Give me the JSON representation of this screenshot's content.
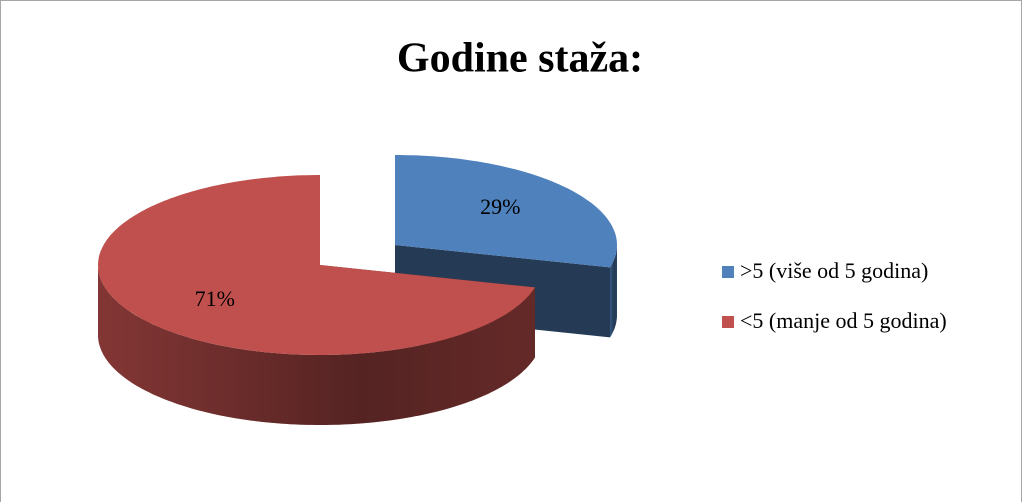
{
  "chart_data": {
    "type": "pie",
    "title": "Godine staža:",
    "categories": [
      ">5 (više od 5 godina)",
      "<5 (manje od 5 godina)"
    ],
    "values": [
      29,
      71
    ],
    "value_labels": [
      "29%",
      "71%"
    ],
    "colors": [
      "#4f81bd",
      "#c0504d"
    ],
    "legend": "right"
  }
}
